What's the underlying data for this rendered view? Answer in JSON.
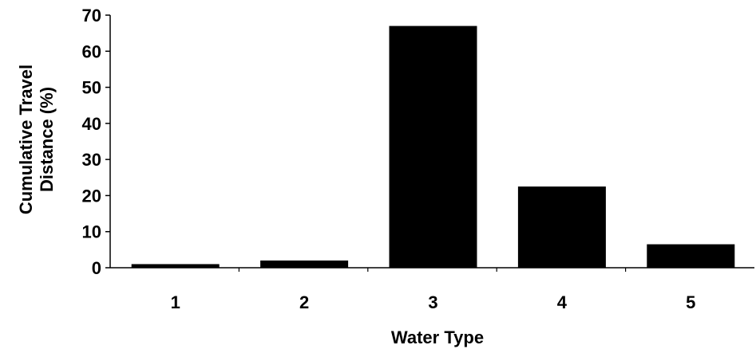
{
  "chart_data": {
    "type": "bar",
    "categories": [
      "1",
      "2",
      "3",
      "4",
      "5"
    ],
    "values": [
      1,
      2,
      67,
      22.5,
      6.5
    ],
    "xlabel": "Water Type",
    "ylabel_lines": [
      "Cumulative Travel",
      "Distance (%)"
    ],
    "ylim": [
      0,
      70
    ],
    "yticks": [
      0,
      10,
      20,
      30,
      40,
      50,
      60,
      70
    ],
    "grid": false,
    "legend": "none",
    "bar_color": "#000000",
    "axis_color": "#000000"
  }
}
